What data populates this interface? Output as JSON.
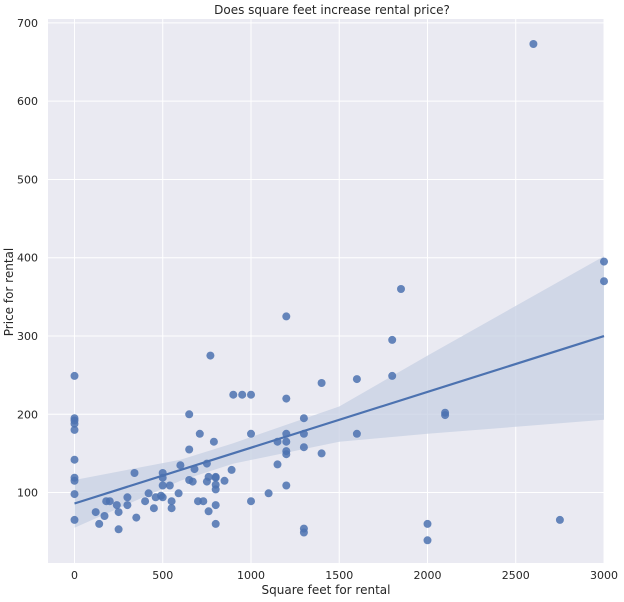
{
  "chart_data": {
    "type": "scatter",
    "title": "Does square feet increase rental price?",
    "xlabel": "Square feet for rental",
    "ylabel": "Price for rental",
    "xlim": [
      -150,
      3000
    ],
    "ylim": [
      10,
      705
    ],
    "xticks": [
      0,
      500,
      1000,
      1500,
      2000,
      2500,
      3000
    ],
    "yticks": [
      100,
      200,
      300,
      400,
      500,
      600,
      700
    ],
    "grid": true,
    "colors": {
      "background": "#eaeaf2",
      "grid": "#ffffff",
      "points": "#4c72b0",
      "line": "#4c72b0",
      "band": "#c7d0e3"
    },
    "regression": {
      "intercept": 86,
      "slope": 0.0713
    },
    "confidence_band": [
      {
        "x": 0,
        "low": 55,
        "high": 116
      },
      {
        "x": 600,
        "low": 115,
        "high": 142
      },
      {
        "x": 900,
        "low": 137,
        "high": 163
      },
      {
        "x": 1500,
        "low": 165,
        "high": 210
      },
      {
        "x": 2000,
        "low": 175,
        "high": 275
      },
      {
        "x": 3000,
        "low": 193,
        "high": 402
      }
    ],
    "points": [
      [
        0,
        249
      ],
      [
        0,
        195
      ],
      [
        0,
        192
      ],
      [
        0,
        188
      ],
      [
        0,
        180
      ],
      [
        0,
        142
      ],
      [
        0,
        119
      ],
      [
        0,
        115
      ],
      [
        0,
        98
      ],
      [
        0,
        65
      ],
      [
        120,
        75
      ],
      [
        140,
        60
      ],
      [
        170,
        70
      ],
      [
        180,
        89
      ],
      [
        200,
        89
      ],
      [
        240,
        84
      ],
      [
        250,
        75
      ],
      [
        250,
        53
      ],
      [
        300,
        94
      ],
      [
        300,
        84
      ],
      [
        340,
        125
      ],
      [
        350,
        68
      ],
      [
        400,
        89
      ],
      [
        420,
        99
      ],
      [
        450,
        80
      ],
      [
        460,
        94
      ],
      [
        490,
        96
      ],
      [
        500,
        125
      ],
      [
        500,
        119
      ],
      [
        500,
        109
      ],
      [
        500,
        94
      ],
      [
        540,
        109
      ],
      [
        550,
        80
      ],
      [
        550,
        89
      ],
      [
        590,
        99
      ],
      [
        600,
        135
      ],
      [
        650,
        200
      ],
      [
        650,
        155
      ],
      [
        650,
        116
      ],
      [
        670,
        114
      ],
      [
        680,
        130
      ],
      [
        700,
        89
      ],
      [
        710,
        175
      ],
      [
        730,
        89
      ],
      [
        750,
        137
      ],
      [
        750,
        114
      ],
      [
        760,
        76
      ],
      [
        760,
        120
      ],
      [
        770,
        275
      ],
      [
        790,
        165
      ],
      [
        800,
        120
      ],
      [
        800,
        119
      ],
      [
        800,
        110
      ],
      [
        800,
        104
      ],
      [
        800,
        84
      ],
      [
        800,
        60
      ],
      [
        850,
        115
      ],
      [
        890,
        129
      ],
      [
        900,
        225
      ],
      [
        950,
        225
      ],
      [
        1000,
        225
      ],
      [
        1000,
        175
      ],
      [
        1000,
        89
      ],
      [
        1100,
        99
      ],
      [
        1150,
        165
      ],
      [
        1150,
        136
      ],
      [
        1200,
        325
      ],
      [
        1200,
        220
      ],
      [
        1200,
        175
      ],
      [
        1200,
        165
      ],
      [
        1200,
        153
      ],
      [
        1200,
        149
      ],
      [
        1200,
        109
      ],
      [
        1300,
        195
      ],
      [
        1300,
        175
      ],
      [
        1300,
        158
      ],
      [
        1300,
        54
      ],
      [
        1300,
        49
      ],
      [
        1400,
        240
      ],
      [
        1400,
        150
      ],
      [
        1600,
        245
      ],
      [
        1600,
        175
      ],
      [
        1800,
        295
      ],
      [
        1800,
        249
      ],
      [
        1850,
        360
      ],
      [
        2000,
        60
      ],
      [
        2000,
        39
      ],
      [
        2100,
        202
      ],
      [
        2100,
        199
      ],
      [
        2600,
        673
      ],
      [
        2750,
        65
      ],
      [
        3000,
        395
      ],
      [
        3000,
        370
      ]
    ]
  }
}
